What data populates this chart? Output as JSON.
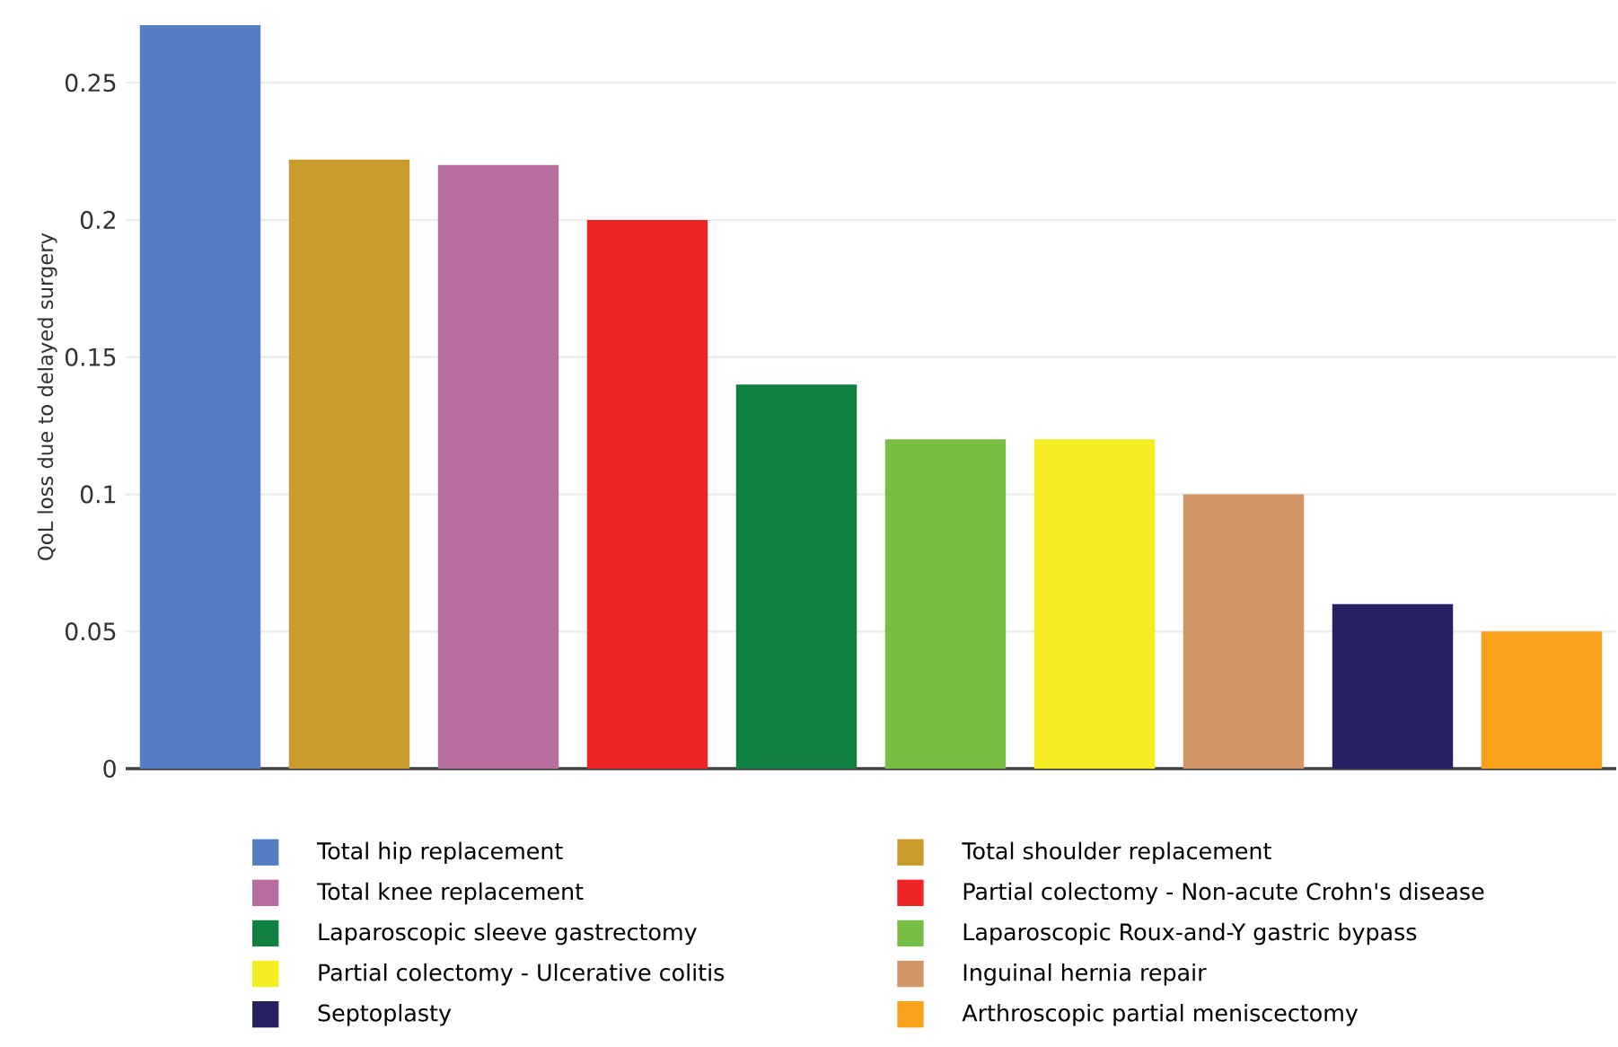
{
  "chart_data": {
    "type": "bar",
    "ylabel": "QoL loss due to delayed surgery",
    "categories": [
      null,
      null,
      null,
      null,
      null,
      null,
      null,
      null,
      null,
      null
    ],
    "series": [
      {
        "name": "Total hip replacement",
        "color": "#5480c3",
        "values": [
          0.271,
          null,
          null,
          null,
          null,
          null,
          null,
          null,
          null,
          null
        ]
      },
      {
        "name": "Total shoulder replacement",
        "color": "#c89b2c",
        "values": [
          null,
          0.222,
          null,
          null,
          null,
          null,
          null,
          null,
          null,
          null
        ]
      },
      {
        "name": "Total knee replacement",
        "color": "#b76e9e",
        "values": [
          null,
          null,
          0.22,
          null,
          null,
          null,
          null,
          null,
          null,
          null
        ]
      },
      {
        "name": "Partial colectomy - Non-acute Crohn's disease",
        "color": "#ee2524",
        "values": [
          null,
          null,
          null,
          0.2,
          null,
          null,
          null,
          null,
          null,
          null
        ]
      },
      {
        "name": "Laparoscopic sleeve gastrectomy",
        "color": "#0f8040",
        "values": [
          null,
          null,
          null,
          null,
          0.14,
          null,
          null,
          null,
          null,
          null
        ]
      },
      {
        "name": "Laparoscopic Roux-and-Y gastric bypass",
        "color": "#77bf44",
        "values": [
          null,
          null,
          null,
          null,
          null,
          0.12,
          null,
          null,
          null,
          null
        ]
      },
      {
        "name": "Partial colectomy - Ulcerative colitis",
        "color": "#f3ed22",
        "values": [
          null,
          null,
          null,
          null,
          null,
          null,
          0.12,
          null,
          null,
          null
        ]
      },
      {
        "name": "Inguinal hernia repair",
        "color": "#d09666",
        "values": [
          null,
          null,
          null,
          null,
          null,
          null,
          null,
          0.1,
          null,
          null
        ]
      },
      {
        "name": "Septoplasty",
        "color": "#262262",
        "values": [
          null,
          null,
          null,
          null,
          null,
          null,
          null,
          null,
          0.06,
          null
        ]
      },
      {
        "name": "Arthroscopic partial meniscectomy",
        "color": "#f9a11b",
        "values": [
          null,
          null,
          null,
          null,
          null,
          null,
          null,
          null,
          null,
          0.05
        ]
      }
    ],
    "ylim": [
      0,
      0.271
    ],
    "yticks": [
      0,
      0.05,
      0.1,
      0.15,
      0.2,
      0.25
    ],
    "grid": "y",
    "legend": "bottom"
  }
}
